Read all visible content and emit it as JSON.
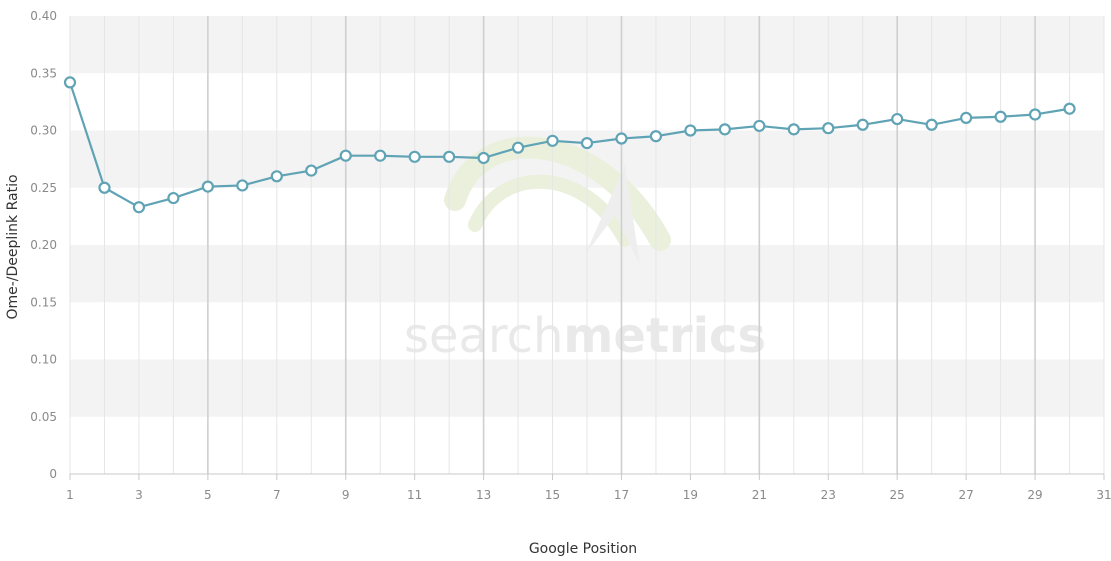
{
  "chart_data": {
    "type": "line",
    "title": "",
    "xlabel": "Google Position",
    "ylabel": "Ome-/Deeplink Ratio",
    "xlim": [
      1,
      31
    ],
    "ylim": [
      0,
      0.4
    ],
    "x_ticks": [
      1,
      3,
      5,
      7,
      9,
      11,
      13,
      15,
      17,
      19,
      21,
      23,
      25,
      27,
      29,
      31
    ],
    "y_ticks": [
      0,
      0.05,
      0.1,
      0.15,
      0.2,
      0.25,
      0.3,
      0.35,
      0.4
    ],
    "x_tick_labels": [
      "1",
      "3",
      "5",
      "7",
      "9",
      "11",
      "13",
      "15",
      "17",
      "19",
      "21",
      "23",
      "25",
      "27",
      "29",
      "31"
    ],
    "y_tick_labels": [
      "0",
      "0.05",
      "0.10",
      "0.15",
      "0.20",
      "0.25",
      "0.30",
      "0.35",
      "0.40"
    ],
    "grid": true,
    "banded_background": true,
    "watermark": {
      "text_light": "search",
      "text_bold": "metrics"
    },
    "series": [
      {
        "color": "#5fa3b5",
        "x": [
          1,
          2,
          3,
          4,
          5,
          6,
          7,
          8,
          9,
          10,
          11,
          12,
          13,
          14,
          15,
          16,
          17,
          18,
          19,
          20,
          21,
          22,
          23,
          24,
          25,
          26,
          27,
          28,
          29,
          30
        ],
        "values": [
          0.342,
          0.25,
          0.233,
          0.241,
          0.251,
          0.252,
          0.26,
          0.265,
          0.278,
          0.278,
          0.277,
          0.277,
          0.276,
          0.285,
          0.291,
          0.289,
          0.293,
          0.295,
          0.3,
          0.301,
          0.304,
          0.301,
          0.302,
          0.305,
          0.31,
          0.305,
          0.311,
          0.312,
          0.314,
          0.319
        ]
      }
    ]
  }
}
